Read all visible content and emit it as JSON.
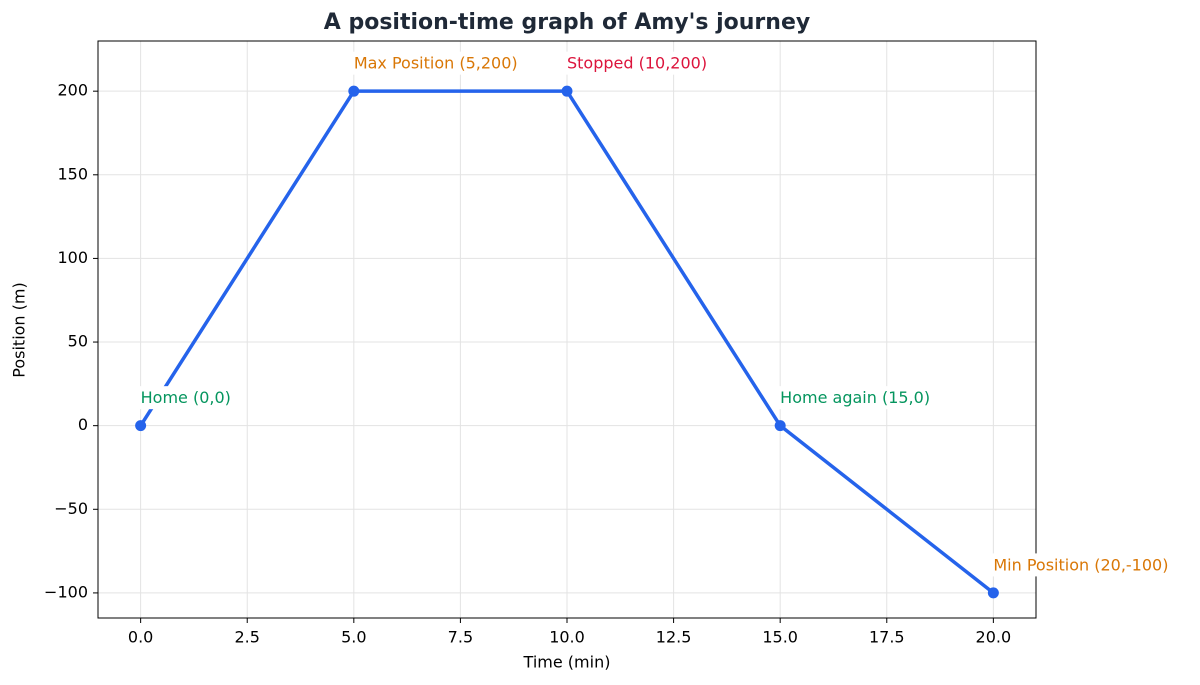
{
  "chart_data": {
    "type": "line",
    "title": "A position-time graph of Amy's journey",
    "xlabel": "Time (min)",
    "ylabel": "Position (m)",
    "x": [
      0,
      5,
      10,
      15,
      20
    ],
    "series": [
      {
        "name": "Position",
        "color": "#2563eb",
        "values": [
          0,
          200,
          200,
          0,
          -100
        ]
      }
    ],
    "xlim": [
      -1,
      21
    ],
    "ylim": [
      -115,
      230
    ],
    "xticks": [
      {
        "value": 0,
        "label": "0.0"
      },
      {
        "value": 2.5,
        "label": "2.5"
      },
      {
        "value": 5,
        "label": "5.0"
      },
      {
        "value": 7.5,
        "label": "7.5"
      },
      {
        "value": 10,
        "label": "10.0"
      },
      {
        "value": 12.5,
        "label": "12.5"
      },
      {
        "value": 15,
        "label": "15.0"
      },
      {
        "value": 17.5,
        "label": "17.5"
      },
      {
        "value": 20,
        "label": "20.0"
      }
    ],
    "yticks": [
      {
        "value": -100,
        "label": "−100"
      },
      {
        "value": -50,
        "label": "−50"
      },
      0,
      50,
      100,
      150,
      200
    ],
    "grid": true,
    "annotations": [
      {
        "text": "Home (0,0)",
        "x": 0,
        "y": 0,
        "color": "#05955e"
      },
      {
        "text": "Max Position (5,200)",
        "x": 5,
        "y": 200,
        "color": "#d97706"
      },
      {
        "text": "Stopped (10,200)",
        "x": 10,
        "y": 200,
        "color": "#dc143c"
      },
      {
        "text": "Home again (15,0)",
        "x": 15,
        "y": 0,
        "color": "#05955e"
      },
      {
        "text": "Min Position (20,-100)",
        "x": 20,
        "y": -100,
        "color": "#d97706"
      }
    ]
  }
}
